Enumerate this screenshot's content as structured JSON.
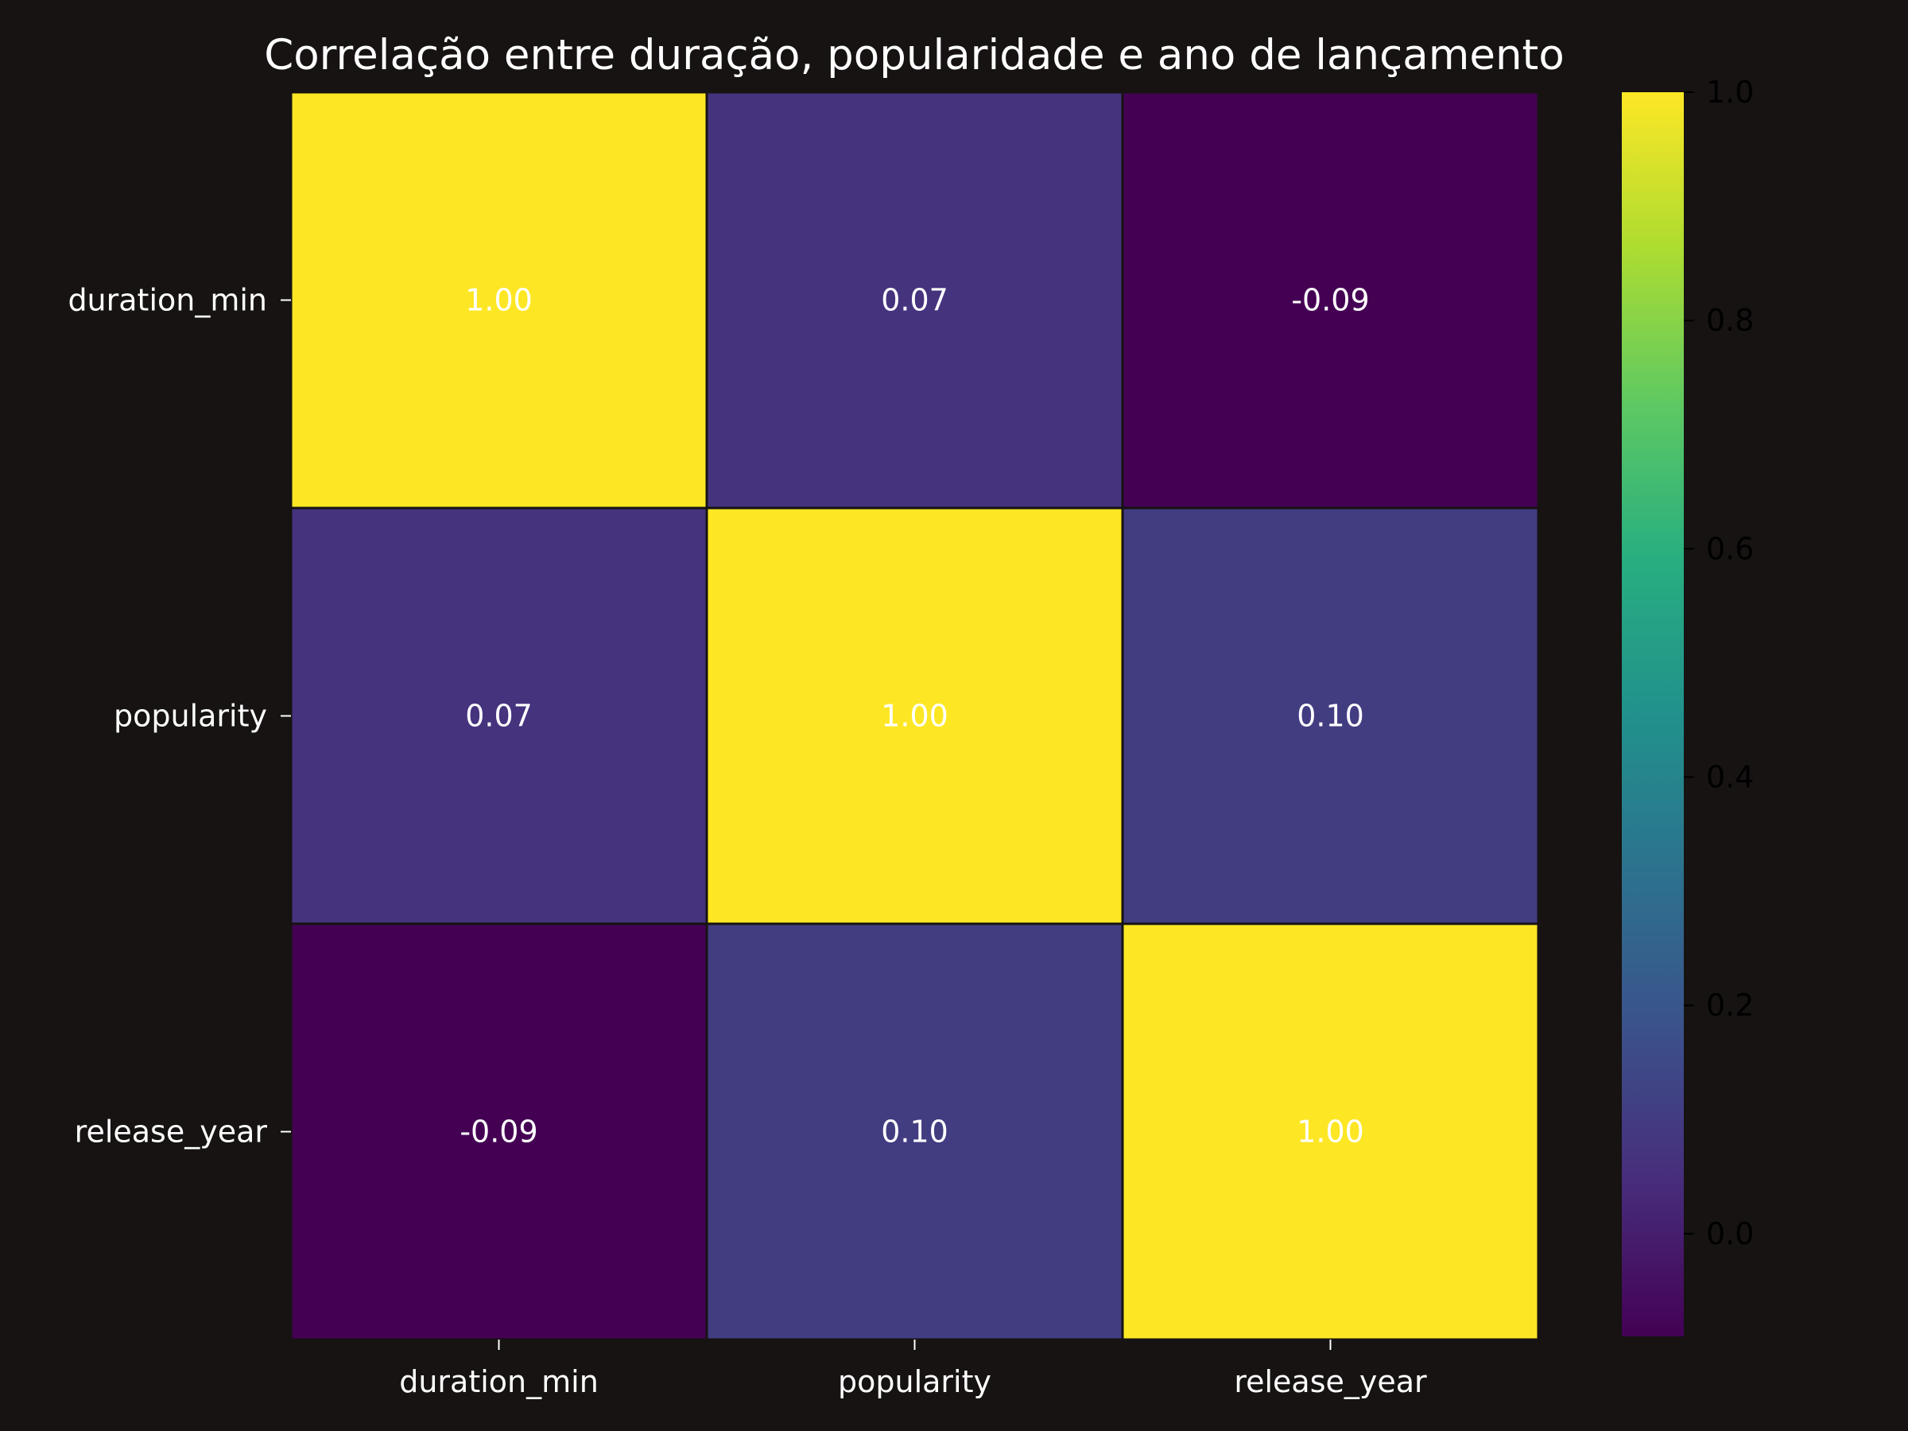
{
  "chart_data": {
    "type": "heatmap",
    "title": "Correlação entre duração, popularidade e ano de lançamento",
    "x_labels": [
      "duration_min",
      "popularity",
      "release_year"
    ],
    "y_labels": [
      "duration_min",
      "popularity",
      "release_year"
    ],
    "values": [
      [
        1.0,
        0.07,
        -0.09
      ],
      [
        0.07,
        1.0,
        0.1
      ],
      [
        -0.09,
        0.1,
        1.0
      ]
    ],
    "value_format": "2 decimals",
    "colormap": "viridis",
    "vmin": -0.09,
    "vmax": 1.0,
    "colorbar_ticks": [
      "0.0",
      "0.2",
      "0.4",
      "0.6",
      "0.8",
      "1.0"
    ],
    "colorbar_tick_values": [
      0.0,
      0.2,
      0.4,
      0.6,
      0.8,
      1.0
    ],
    "colors": {
      "background": "#161312",
      "cell_border": "#161312",
      "text": "#ffffff",
      "colorbar_tick_text": "#000000"
    }
  }
}
